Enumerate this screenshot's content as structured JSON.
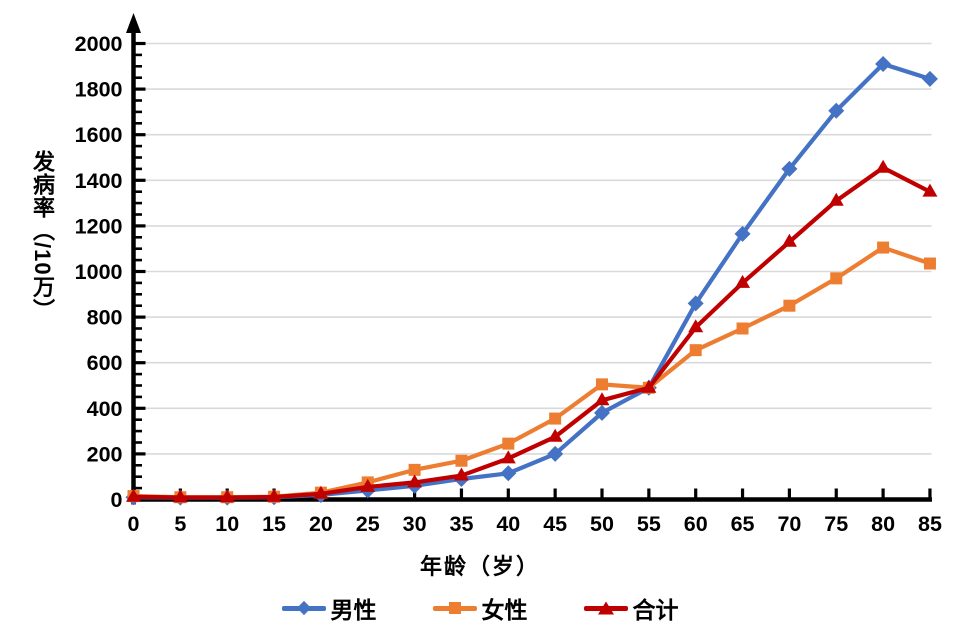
{
  "chart_data": {
    "type": "line",
    "title": "",
    "xlabel": "年龄（岁）",
    "ylabel": "发病率（/10万）",
    "x": [
      0,
      5,
      10,
      15,
      20,
      25,
      30,
      35,
      40,
      45,
      50,
      55,
      60,
      65,
      70,
      75,
      80,
      85
    ],
    "y_ticks": [
      0,
      200,
      400,
      600,
      800,
      1000,
      1200,
      1400,
      1600,
      1800,
      2000
    ],
    "y_minor_tick_step": 50,
    "ylim": [
      0,
      2100
    ],
    "grid": "horizontal-major-only",
    "legend_position": "bottom-center",
    "axis_color": "#000000",
    "grid_color": "#d9d9d9",
    "text_color": "#000000",
    "series": [
      {
        "key": "male",
        "name": "男性",
        "marker": "diamond",
        "color": "#4472c4",
        "values": [
          10,
          8,
          8,
          10,
          20,
          40,
          60,
          90,
          115,
          200,
          380,
          490,
          860,
          1165,
          1450,
          1705,
          1910,
          1845
        ]
      },
      {
        "key": "female",
        "name": "女性",
        "marker": "square",
        "color": "#ed7d31",
        "values": [
          15,
          10,
          10,
          12,
          30,
          75,
          130,
          170,
          245,
          355,
          505,
          490,
          655,
          750,
          850,
          970,
          1105,
          1035
        ]
      },
      {
        "key": "total",
        "name": "合计",
        "marker": "triangle",
        "color": "#c00000",
        "values": [
          12,
          9,
          9,
          11,
          25,
          55,
          75,
          105,
          180,
          275,
          435,
          490,
          755,
          950,
          1130,
          1310,
          1455,
          1350
        ]
      }
    ]
  }
}
